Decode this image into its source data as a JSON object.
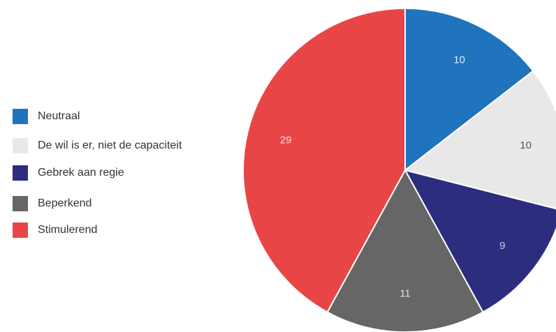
{
  "chart_data": {
    "type": "pie",
    "title": "",
    "legend_position": "left",
    "slices": [
      {
        "label": "Neutraal",
        "value": 10,
        "color": "#1f74bd",
        "value_text_color": "#e0ecf7"
      },
      {
        "label": "De wil is er, niet de capaciteit",
        "value": 10,
        "color": "#e8e8e8",
        "value_text_color": "#555555"
      },
      {
        "label": "Gebrek aan regie",
        "value": 9,
        "color": "#2d2d7f",
        "value_text_color": "#c9c9e6"
      },
      {
        "label": "Beperkend",
        "value": 11,
        "color": "#666666",
        "value_text_color": "#dddddd"
      },
      {
        "label": "Stimulerend",
        "value": 29,
        "color": "#e84646",
        "value_text_color": "#ffd4d4"
      }
    ]
  }
}
